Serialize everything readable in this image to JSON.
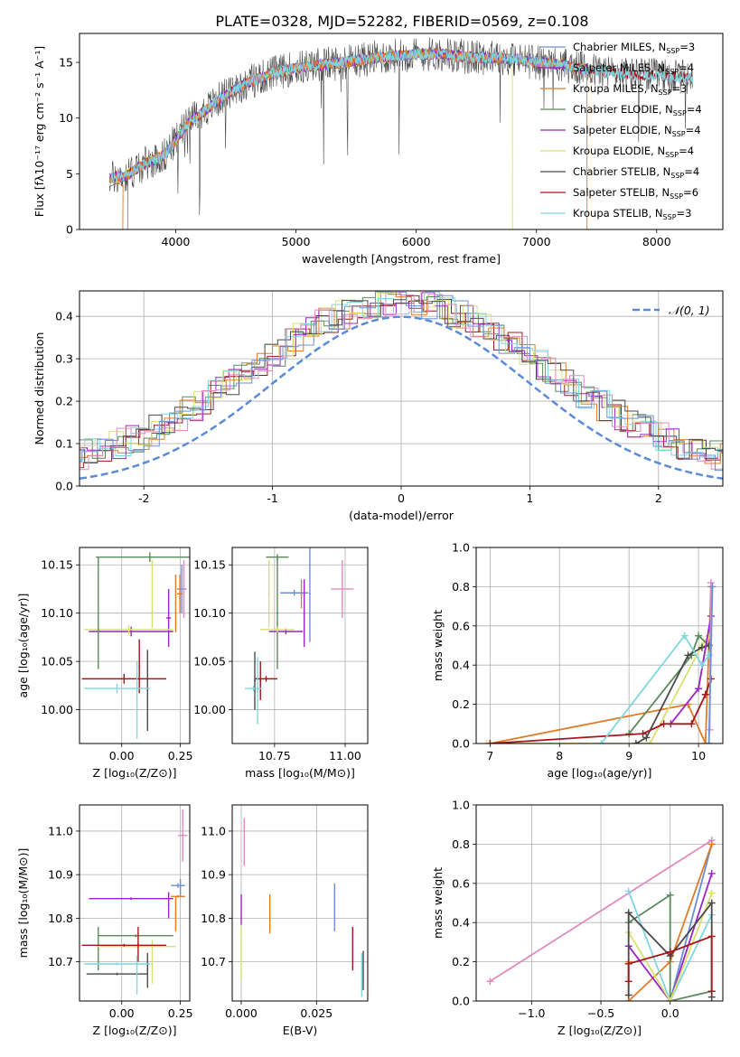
{
  "figure_title": "PLATE=0328, MJD=52282, FIBERID=0569, z=0.108",
  "colors": {
    "Chabrier MILES": "#6a8fd8",
    "Salpeter MILES": "#9d22c8",
    "Kroupa MILES": "#e07b28",
    "Chabrier ELODIE": "#5b8a5a",
    "Salpeter ELODIE": "#8f2fb0",
    "Kroupa ELODIE": "#d8e070",
    "Chabrier STELIB": "#4a4a4a",
    "Salpeter STELIB": "#a3161c",
    "Kroupa STELIB": "#7fd6e0",
    "Pink": "#e08ac0",
    "Normal": "#5b8bd8"
  },
  "chart_data": [
    {
      "id": "spectrum",
      "type": "line",
      "xlabel": "wavelength [Angstrom, rest frame]",
      "ylabel": "Flux [fλ10⁻¹⁷ erg cm⁻² s⁻¹ A⁻¹]",
      "xlim": [
        3200,
        8550
      ],
      "ylim": [
        0,
        17.6
      ],
      "xticks": [
        4000,
        5000,
        6000,
        7000,
        8000
      ],
      "yticks": [
        0,
        5,
        10,
        15
      ],
      "grid": false,
      "legend_placement": "top-right",
      "legend": [
        {
          "label": "Chabrier MILES, N",
          "sub": "SSP",
          "suffix": "=3",
          "color": "#6a8fd8"
        },
        {
          "label": "Salpeter MILES, N",
          "sub": "SSP",
          "suffix": "=4",
          "color": "#9d22c8"
        },
        {
          "label": "Kroupa MILES, N",
          "sub": "SSP",
          "suffix": "=3",
          "color": "#e07b28"
        },
        {
          "label": "Chabrier ELODIE, N",
          "sub": "SSP",
          "suffix": "=4",
          "color": "#5b8a5a"
        },
        {
          "label": "Salpeter ELODIE, N",
          "sub": "SSP",
          "suffix": "=4",
          "color": "#8f2fb0"
        },
        {
          "label": "Kroupa ELODIE, N",
          "sub": "SSP",
          "suffix": "=4",
          "color": "#d8e070"
        },
        {
          "label": "Chabrier STELIB, N",
          "sub": "SSP",
          "suffix": "=4",
          "color": "#4a4a4a"
        },
        {
          "label": "Salpeter STELIB, N",
          "sub": "SSP",
          "suffix": "=6",
          "color": "#a3161c"
        },
        {
          "label": "Kroupa STELIB, N",
          "sub": "SSP",
          "suffix": "=3",
          "color": "#7fd6e0"
        }
      ],
      "continuum": {
        "x": [
          3450,
          3600,
          3700,
          3800,
          3900,
          4000,
          4100,
          4200,
          4400,
          4600,
          4800,
          5000,
          5200,
          5400,
          5600,
          5800,
          6000,
          6200,
          6400,
          6600,
          6800,
          7000,
          7200,
          7400,
          7600,
          7800,
          8000,
          8300
        ],
        "y": [
          4.6,
          4.9,
          5.6,
          6.2,
          6.6,
          8.0,
          9.5,
          10.3,
          12.0,
          13.2,
          14.0,
          14.5,
          14.8,
          15.0,
          15.3,
          15.6,
          15.7,
          15.8,
          15.5,
          15.4,
          15.3,
          15.0,
          14.8,
          14.4,
          14.1,
          13.9,
          13.8,
          13.6
        ]
      }
    },
    {
      "id": "residuals",
      "type": "line",
      "xlabel": "(data-model)/error",
      "ylabel": "Normed distribution",
      "xlim": [
        -2.5,
        2.5
      ],
      "ylim": [
        0,
        0.46
      ],
      "xticks": [
        -2,
        -1,
        0,
        1,
        2
      ],
      "yticks": [
        0.0,
        0.1,
        0.2,
        0.3,
        0.4
      ],
      "grid": true,
      "legend_placement": "top-right",
      "legend": [
        {
          "label": "𝒩(0, 1)",
          "color": "#5b8bd8"
        }
      ],
      "normal": {
        "mu": 0,
        "sigma": 1
      }
    },
    {
      "id": "age_vs_Z",
      "type": "scatter",
      "xlabel": "Z [log₁₀(Z/Z⊙)]",
      "ylabel": "age  [log₁₀(age/yr)]",
      "xlim": [
        -0.18,
        0.29
      ],
      "ylim": [
        9.965,
        10.168
      ],
      "xticks": [
        0.0,
        0.25
      ],
      "xticklabels": [
        "0.00",
        "0.25"
      ],
      "yticks": [
        10.0,
        10.05,
        10.1,
        10.15
      ],
      "yticklabels": [
        "10.00",
        "10.05",
        "10.10",
        "10.15"
      ],
      "grid": true,
      "points": [
        {
          "x": 0.256,
          "xerr": 0.02,
          "y": 10.125,
          "yerr": 0.025,
          "color": "#6a8fd8"
        },
        {
          "x": 0.2,
          "xerr": 0.01,
          "y": 10.095,
          "yerr": 0.03,
          "color": "#9d22c8"
        },
        {
          "x": 0.248,
          "xerr": 0.012,
          "y": 10.12,
          "yerr": 0.02,
          "color": "#e07b28"
        },
        {
          "x": 0.12,
          "xerr": 0.23,
          "y": 10.158,
          "yerr": 0.005,
          "color": "#5b8a5a"
        },
        {
          "x": 0.04,
          "xerr": 0.18,
          "y": 10.081,
          "yerr": 0.005,
          "color": "#8f2fb0"
        },
        {
          "x": 0.03,
          "xerr": 0.19,
          "y": 10.083,
          "yerr": 0.005,
          "color": "#d8e070"
        },
        {
          "x": -0.1,
          "xerr": 0.003,
          "y": 10.1,
          "yerr": 0.058,
          "color": "#5b8a5a"
        },
        {
          "x": 0.13,
          "xerr": 0.003,
          "y": 10.12,
          "yerr": 0.035,
          "color": "#d8e070"
        },
        {
          "x": 0.23,
          "xerr": 0.003,
          "y": 10.11,
          "yerr": 0.03,
          "color": "#e07b28"
        },
        {
          "x": 0.075,
          "xerr": 0.003,
          "y": 10.045,
          "yerr": 0.028,
          "color": "#a3161c"
        },
        {
          "x": 0.01,
          "xerr": 0.18,
          "y": 10.032,
          "yerr": 0.005,
          "color": "#a3161c"
        },
        {
          "x": 0.11,
          "xerr": 0.003,
          "y": 10.02,
          "yerr": 0.042,
          "color": "#4a4a4a"
        },
        {
          "x": -0.02,
          "xerr": 0.14,
          "y": 10.022,
          "yerr": 0.005,
          "color": "#7fd6e0"
        },
        {
          "x": 0.065,
          "xerr": 0.003,
          "y": 10.01,
          "yerr": 0.04,
          "color": "#7fd6e0"
        },
        {
          "x": 0.265,
          "xerr": 0.003,
          "y": 10.125,
          "yerr": 0.03,
          "color": "#e08ac0"
        }
      ]
    },
    {
      "id": "age_vs_mass",
      "type": "scatter",
      "xlabel": "mass [log₁₀(M/M⊙)]",
      "ylabel": "",
      "xlim": [
        10.6,
        11.08
      ],
      "ylim": [
        9.965,
        10.168
      ],
      "xticks": [
        10.75,
        11.0
      ],
      "xticklabels": [
        "10.75",
        "11.00"
      ],
      "yticks": [
        10.0,
        10.05,
        10.1,
        10.15
      ],
      "yticklabels": [
        "10.00",
        "10.05",
        "10.10",
        "10.15"
      ],
      "grid": true,
      "points": [
        {
          "x": 10.875,
          "xerr": 0.003,
          "y": 10.12,
          "yerr": 0.05,
          "color": "#6a8fd8"
        },
        {
          "x": 10.82,
          "xerr": 0.05,
          "y": 10.121,
          "yerr": 0.003,
          "color": "#6a8fd8"
        },
        {
          "x": 10.855,
          "xerr": 0.003,
          "y": 10.1,
          "yerr": 0.035,
          "color": "#9d22c8"
        },
        {
          "x": 10.845,
          "xerr": 0.003,
          "y": 10.12,
          "yerr": 0.015,
          "color": "#e07b28"
        },
        {
          "x": 10.76,
          "xerr": 0.04,
          "y": 10.158,
          "yerr": 0.003,
          "color": "#5b8a5a"
        },
        {
          "x": 10.76,
          "xerr": 0.003,
          "y": 10.1,
          "yerr": 0.058,
          "color": "#5b8a5a"
        },
        {
          "x": 10.79,
          "xerr": 0.06,
          "y": 10.081,
          "yerr": 0.003,
          "color": "#8f2fb0"
        },
        {
          "x": 10.73,
          "xerr": 0.003,
          "y": 10.12,
          "yerr": 0.035,
          "color": "#d8e070"
        },
        {
          "x": 10.76,
          "xerr": 0.06,
          "y": 10.083,
          "yerr": 0.003,
          "color": "#d8e070"
        },
        {
          "x": 10.68,
          "xerr": 0.003,
          "y": 10.03,
          "yerr": 0.03,
          "color": "#4a4a4a"
        },
        {
          "x": 10.72,
          "xerr": 0.04,
          "y": 10.032,
          "yerr": 0.003,
          "color": "#a3161c"
        },
        {
          "x": 10.7,
          "xerr": 0.003,
          "y": 10.03,
          "yerr": 0.02,
          "color": "#a3161c"
        },
        {
          "x": 10.675,
          "xerr": 0.03,
          "y": 10.022,
          "yerr": 0.003,
          "color": "#7fd6e0"
        },
        {
          "x": 10.69,
          "xerr": 0.003,
          "y": 10.02,
          "yerr": 0.035,
          "color": "#7fd6e0"
        },
        {
          "x": 10.99,
          "xerr": 0.04,
          "y": 10.125,
          "yerr": 0.03,
          "color": "#e08ac0"
        }
      ]
    },
    {
      "id": "weight_vs_age",
      "type": "line",
      "xlabel": "age  [log₁₀(age/yr)]",
      "ylabel": "mass weight",
      "xlim": [
        6.8,
        10.35
      ],
      "ylim": [
        0,
        1.0
      ],
      "xticks": [
        7,
        8,
        9,
        10
      ],
      "yticks": [
        0.0,
        0.2,
        0.4,
        0.6,
        0.8,
        1.0
      ],
      "yticklabels": [
        "0.0",
        "0.2",
        "0.4",
        "0.6",
        "0.8",
        "1.0"
      ],
      "grid": true,
      "series": [
        {
          "color": "#e07b28",
          "x": [
            7.0,
            9.85,
            10.1,
            10.18
          ],
          "y": [
            0.0,
            0.2,
            0.0,
            0.8
          ]
        },
        {
          "color": "#d8e070",
          "x": [
            6.95,
            9.3,
            10.05,
            10.15
          ],
          "y": [
            0.0,
            0.0,
            0.5,
            0.55
          ]
        },
        {
          "color": "#5b8a5a",
          "x": [
            9.0,
            9.9,
            10.0,
            10.15
          ],
          "y": [
            0.05,
            0.45,
            0.55,
            0.5
          ]
        },
        {
          "color": "#4a4a4a",
          "x": [
            9.1,
            9.25,
            9.85,
            10.05,
            10.15
          ],
          "y": [
            0.0,
            0.03,
            0.45,
            0.49,
            0.5
          ]
        },
        {
          "color": "#9d22c8",
          "x": [
            9.6,
            10.0,
            10.18
          ],
          "y": [
            0.1,
            0.28,
            0.65
          ]
        },
        {
          "color": "#a3161c",
          "x": [
            7.0,
            9.2,
            9.5,
            9.9,
            10.1,
            10.18
          ],
          "y": [
            0.0,
            0.05,
            0.1,
            0.1,
            0.25,
            0.33
          ]
        },
        {
          "color": "#7fd6e0",
          "x": [
            8.6,
            9.8,
            10.05,
            10.15
          ],
          "y": [
            0.0,
            0.55,
            0.4,
            0.45
          ]
        },
        {
          "color": "#e08ac0",
          "x": [
            10.16,
            10.18
          ],
          "y": [
            0.07,
            0.82
          ]
        },
        {
          "color": "#6a8fd8",
          "x": [
            10.15,
            10.2
          ],
          "y": [
            0.0,
            0.8
          ]
        }
      ]
    },
    {
      "id": "mass_vs_Z",
      "type": "scatter",
      "xlabel": "Z [log₁₀(Z/Z⊙)]",
      "ylabel": "mass [log₁₀(M/M⊙)]",
      "xlim": [
        -0.18,
        0.29
      ],
      "ylim": [
        10.61,
        11.06
      ],
      "xticks": [
        0.0,
        0.25
      ],
      "xticklabels": [
        "0.00",
        "0.25"
      ],
      "yticks": [
        10.7,
        10.8,
        10.9,
        11.0
      ],
      "yticklabels": [
        "10.7",
        "10.8",
        "10.9",
        "11.0"
      ],
      "grid": true,
      "points": [
        {
          "x": 0.24,
          "xerr": 0.03,
          "y": 10.875,
          "yerr": 0.005,
          "color": "#6a8fd8"
        },
        {
          "x": 0.25,
          "xerr": 0.003,
          "y": 10.87,
          "yerr": 0.02,
          "color": "#6a8fd8"
        },
        {
          "x": 0.04,
          "xerr": 0.18,
          "y": 10.845,
          "yerr": 0.003,
          "color": "#9d22c8"
        },
        {
          "x": 0.2,
          "xerr": 0.003,
          "y": 10.83,
          "yerr": 0.03,
          "color": "#9d22c8"
        },
        {
          "x": 0.24,
          "xerr": 0.03,
          "y": 10.85,
          "yerr": 0.003,
          "color": "#e07b28"
        },
        {
          "x": 0.23,
          "xerr": 0.003,
          "y": 10.81,
          "yerr": 0.04,
          "color": "#e07b28"
        },
        {
          "x": 0.06,
          "xerr": 0.16,
          "y": 10.76,
          "yerr": 0.003,
          "color": "#5b8a5a"
        },
        {
          "x": -0.1,
          "xerr": 0.003,
          "y": 10.73,
          "yerr": 0.05,
          "color": "#5b8a5a"
        },
        {
          "x": 0.13,
          "xerr": 0.003,
          "y": 10.7,
          "yerr": 0.05,
          "color": "#d8e070"
        },
        {
          "x": 0.06,
          "xerr": 0.17,
          "y": 10.735,
          "yerr": 0.003,
          "color": "#d8e070"
        },
        {
          "x": 0.01,
          "xerr": 0.18,
          "y": 10.738,
          "yerr": 0.003,
          "color": "#a3161c"
        },
        {
          "x": 0.07,
          "xerr": 0.003,
          "y": 10.74,
          "yerr": 0.04,
          "color": "#a3161c"
        },
        {
          "x": -0.02,
          "xerr": 0.13,
          "y": 10.672,
          "yerr": 0.003,
          "color": "#4a4a4a"
        },
        {
          "x": 0.11,
          "xerr": 0.003,
          "y": 10.68,
          "yerr": 0.04,
          "color": "#4a4a4a"
        },
        {
          "x": -0.02,
          "xerr": 0.14,
          "y": 10.695,
          "yerr": 0.003,
          "color": "#7fd6e0"
        },
        {
          "x": 0.065,
          "xerr": 0.003,
          "y": 10.67,
          "yerr": 0.045,
          "color": "#7fd6e0"
        },
        {
          "x": 0.26,
          "xerr": 0.02,
          "y": 10.99,
          "yerr": 0.06,
          "color": "#e08ac0"
        }
      ]
    },
    {
      "id": "mass_vs_EBV",
      "type": "scatter",
      "xlabel": "E(B-V)",
      "ylabel": "",
      "xlim": [
        -0.003,
        0.042
      ],
      "ylim": [
        10.61,
        11.06
      ],
      "xticks": [
        0.0,
        0.025
      ],
      "xticklabels": [
        "0.000",
        "0.025"
      ],
      "yticks": [
        10.7,
        10.8,
        10.9,
        11.0
      ],
      "yticklabels": [
        "10.7",
        "10.8",
        "10.9",
        "11.0"
      ],
      "grid": true,
      "points": [
        {
          "x": 0.001,
          "xerr": 0.0,
          "y": 10.975,
          "yerr": 0.055,
          "color": "#e08ac0"
        },
        {
          "x": 0.0,
          "xerr": 0.0,
          "y": 10.82,
          "yerr": 0.035,
          "color": "#9d22c8"
        },
        {
          "x": 0.0,
          "xerr": 0.0,
          "y": 10.72,
          "yerr": 0.06,
          "color": "#d8e070"
        },
        {
          "x": 0.0095,
          "xerr": 0.0,
          "y": 10.81,
          "yerr": 0.045,
          "color": "#e07b28"
        },
        {
          "x": 0.031,
          "xerr": 0.0,
          "y": 10.825,
          "yerr": 0.055,
          "color": "#6a8fd8"
        },
        {
          "x": 0.037,
          "xerr": 0.0,
          "y": 10.73,
          "yerr": 0.05,
          "color": "#a3161c"
        },
        {
          "x": 0.04,
          "xerr": 0.0,
          "y": 10.67,
          "yerr": 0.05,
          "color": "#7fd6e0"
        },
        {
          "x": 0.0405,
          "xerr": 0.0,
          "y": 10.68,
          "yerr": 0.045,
          "color": "#4a4a4a"
        }
      ]
    },
    {
      "id": "weight_vs_Z",
      "type": "line",
      "xlabel": "Z [log₁₀(Z/Z⊙)]",
      "ylabel": "mass weight",
      "xlim": [
        -1.4,
        0.38
      ],
      "ylim": [
        0,
        1.0
      ],
      "xticks": [
        -1.0,
        -0.5,
        0.0
      ],
      "xticklabels": [
        "−1.0",
        "−0.5",
        "0.0"
      ],
      "yticks": [
        0.0,
        0.2,
        0.4,
        0.6,
        0.8,
        1.0
      ],
      "yticklabels": [
        "0.0",
        "0.2",
        "0.4",
        "0.6",
        "0.8",
        "1.0"
      ],
      "grid": true,
      "series": [
        {
          "color": "#e08ac0",
          "x": [
            -1.3,
            0.3
          ],
          "y": [
            0.1,
            0.82
          ]
        },
        {
          "color": "#6a8fd8",
          "x": [
            0.0,
            0.3
          ],
          "y": [
            0.0,
            0.8
          ]
        },
        {
          "color": "#e07b28",
          "x": [
            -0.3,
            -0.3,
            0.0,
            0.3
          ],
          "y": [
            0.2,
            0.0,
            0.2,
            0.8
          ]
        },
        {
          "color": "#5b8a5a",
          "x": [
            -0.3,
            -0.3,
            0.0,
            0.0,
            0.3
          ],
          "y": [
            0.45,
            0.4,
            0.54,
            0.0,
            0.05
          ]
        },
        {
          "color": "#7fd6e0",
          "x": [
            -0.3,
            0.0,
            0.3
          ],
          "y": [
            0.56,
            0.0,
            0.44
          ]
        },
        {
          "color": "#9d22c8",
          "x": [
            -0.3,
            0.0,
            0.3
          ],
          "y": [
            0.28,
            0.0,
            0.65
          ]
        },
        {
          "color": "#d8e070",
          "x": [
            -0.3,
            0.0,
            0.3
          ],
          "y": [
            0.35,
            0.0,
            0.55
          ]
        },
        {
          "color": "#4a4a4a",
          "x": [
            -0.3,
            -0.3,
            0.0,
            0.3,
            0.3
          ],
          "y": [
            0.03,
            0.45,
            0.23,
            0.5,
            0.02
          ]
        },
        {
          "color": "#a3161c",
          "x": [
            -0.3,
            -0.3,
            0.0,
            0.3,
            0.3
          ],
          "y": [
            0.1,
            0.19,
            0.25,
            0.33,
            0.05
          ]
        }
      ]
    }
  ]
}
